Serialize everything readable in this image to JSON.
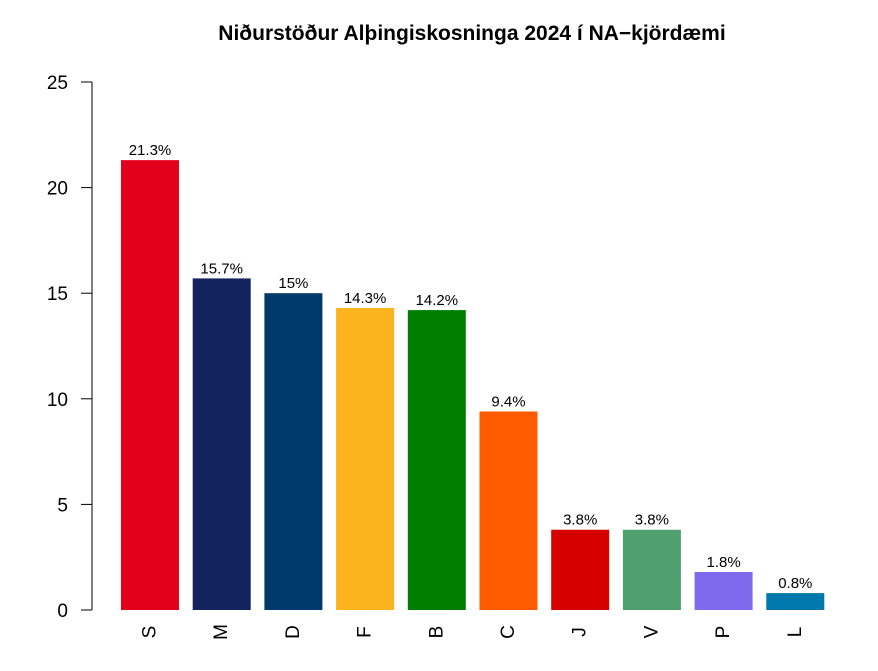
{
  "chart_data": {
    "type": "bar",
    "title": "Niðurstöður Alþingiskosninga 2024 í NA−kjördæmi",
    "xlabel": "",
    "ylabel": "",
    "ylim": [
      0,
      25
    ],
    "yticks": [
      0,
      5,
      10,
      15,
      20,
      25
    ],
    "categories": [
      "S",
      "M",
      "D",
      "F",
      "B",
      "C",
      "J",
      "V",
      "P",
      "L"
    ],
    "values": [
      21.3,
      15.7,
      15.0,
      14.3,
      14.2,
      9.4,
      3.8,
      3.8,
      1.8,
      0.8
    ],
    "data_labels": [
      "21.3%",
      "15.7%",
      "15%",
      "14.3%",
      "14.2%",
      "9.4%",
      "3.8%",
      "3.8%",
      "1.8%",
      "0.8%"
    ],
    "colors": [
      "#e3001b",
      "#13235e",
      "#003a6b",
      "#fbb41e",
      "#007e00",
      "#ff5a00",
      "#d60000",
      "#4fa06e",
      "#7f6aee",
      "#0078ab"
    ],
    "grid": false,
    "legend": "none"
  }
}
